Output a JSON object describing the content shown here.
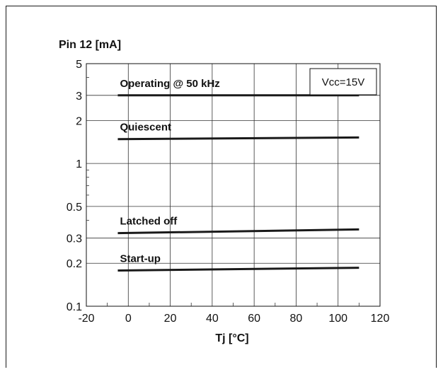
{
  "chart_data": {
    "type": "line",
    "ylabel": "Pin 12 [mA]",
    "xlabel": "Tj [°C]",
    "xlim": [
      -20,
      120
    ],
    "ylim": [
      0.1,
      5
    ],
    "y_scale": "log",
    "grid": true,
    "x_ticks": [
      -20,
      0,
      20,
      40,
      60,
      80,
      100,
      120
    ],
    "y_ticks": [
      0.1,
      0.2,
      0.3,
      0.5,
      1,
      2,
      3,
      5
    ],
    "y_tick_labels": [
      "0.1",
      "0.2",
      "0.3",
      "0.5",
      "1",
      "2",
      "3",
      "5"
    ],
    "legend": {
      "text": "Vcc=15V",
      "placement": "top-right"
    },
    "series": [
      {
        "name": "Operating @ 50 kHz",
        "x": [
          -5,
          110
        ],
        "y": [
          3.0,
          3.0
        ]
      },
      {
        "name": "Quiescent",
        "x": [
          -5,
          110
        ],
        "y": [
          1.48,
          1.52
        ]
      },
      {
        "name": "Latched off",
        "x": [
          -5,
          110
        ],
        "y": [
          0.325,
          0.345
        ]
      },
      {
        "name": "Start-up",
        "x": [
          -5,
          110
        ],
        "y": [
          0.178,
          0.186
        ]
      }
    ]
  }
}
